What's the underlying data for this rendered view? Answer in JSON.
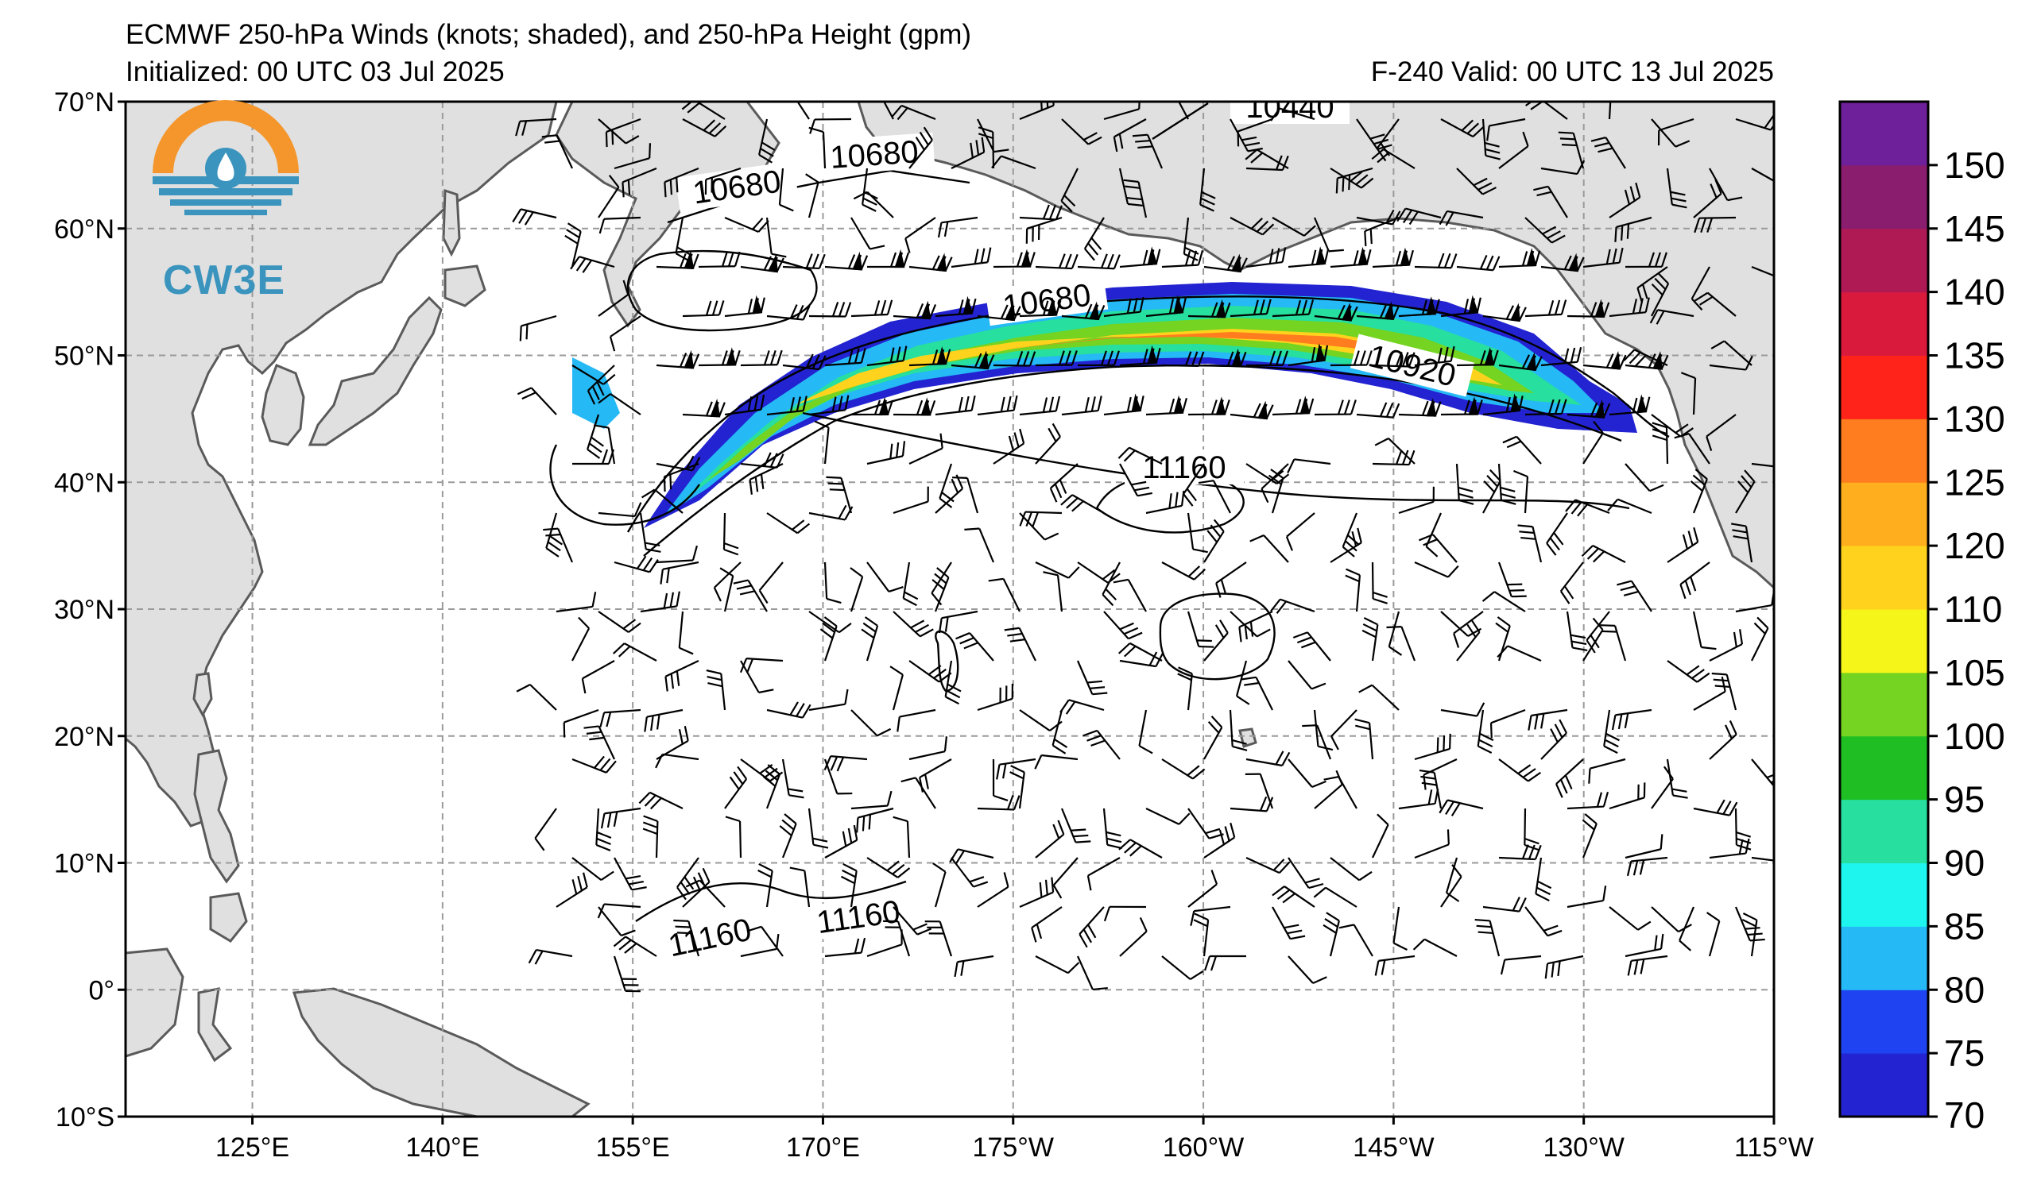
{
  "header": {
    "title": "ECMWF 250-hPa Winds (knots; shaded), and 250-hPa Height (gpm)",
    "initialized": "Initialized: 00 UTC 03 Jul 2025",
    "valid": "F-240  Valid: 00 UTC 13 Jul 2025"
  },
  "logo": {
    "text": "CW3E"
  },
  "axes": {
    "lon_ticks": [
      "125°E",
      "140°E",
      "155°E",
      "170°E",
      "175°W",
      "160°W",
      "145°W",
      "130°W",
      "115°W"
    ],
    "lat_ticks": [
      "70°N",
      "60°N",
      "50°N",
      "40°N",
      "30°N",
      "20°N",
      "10°N",
      "0°",
      "10°S"
    ],
    "lon_range_deg": [
      115,
      245
    ],
    "lat_range_deg": [
      -10,
      70
    ],
    "grid": true
  },
  "height_contours": {
    "labels": [
      "10440",
      "10680",
      "10680",
      "10680",
      "10920",
      "11160",
      "11160",
      "11160"
    ]
  },
  "colorbar": {
    "labels": [
      "70",
      "75",
      "80",
      "85",
      "90",
      "95",
      "100",
      "105",
      "110",
      "120",
      "125",
      "130",
      "135",
      "140",
      "145",
      "150"
    ],
    "colors": [
      "#2323d1",
      "#1f43f0",
      "#25b9f6",
      "#1ef5ee",
      "#27df9f",
      "#1fbf24",
      "#74d421",
      "#f5f519",
      "#ffd31d",
      "#ffaf1e",
      "#ff7c1f",
      "#ff2319",
      "#d91a3d",
      "#b01a54",
      "#8a1d6e",
      "#6e1f9a"
    ]
  },
  "colors": {
    "land": "#e0e0e0",
    "coast": "#5a5a5a",
    "grid": "#9a9a9a",
    "logo_orange": "#f4962c",
    "logo_blue": "#3a94bd"
  }
}
